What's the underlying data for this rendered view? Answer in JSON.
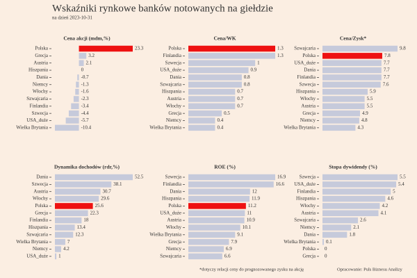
{
  "title": "Wskaźniki rynkowe banków notowanych na giełdzie",
  "subtitle": "na dzień 2023-10-31",
  "note": "*dotyczy relacji ceny do prognozowanego zysku na akcję",
  "source": "Opracowanie: Puls Biznesu Analizy",
  "chart_data": [
    {
      "type": "bar",
      "orientation": "horizontal",
      "title": "Cena akcji (mdm,%)",
      "color": "#c6cadb",
      "highlight": "Polska",
      "highlight_color": "#ee1111",
      "label_color": "#3d8ea0",
      "categories": [
        "Polska",
        "Grecja",
        "Austria",
        "Hiszpania",
        "Dania",
        "Niemcy",
        "Włochy",
        "Szwajcaria",
        "Finlandia",
        "Szwecja",
        "USA_duże",
        "Wielka Brytania"
      ],
      "values": [
        23.3,
        3.2,
        2.1,
        0,
        -0.7,
        -1.3,
        -1.6,
        -2.3,
        -3.4,
        -4.4,
        -5.7,
        -10.4
      ]
    },
    {
      "type": "bar",
      "orientation": "horizontal",
      "title": "Cena/WK",
      "color": "#c6cadb",
      "highlight": "Polska",
      "highlight_color": "#ee1111",
      "label_color": "#3d8ea0",
      "categories": [
        "Polska",
        "Finlandia",
        "Szwecja",
        "USA_duże",
        "Dania",
        "Szwajcaria",
        "Hiszpania",
        "Austria",
        "Włochy",
        "Grecja",
        "Niemcy",
        "Wielka Brytania"
      ],
      "values": [
        1.3,
        1.3,
        1,
        0.9,
        0.8,
        0.8,
        0.7,
        0.7,
        0.7,
        0.5,
        0.4,
        0.4
      ]
    },
    {
      "type": "bar",
      "orientation": "horizontal",
      "title": "Cena/Zysk*",
      "color": "#c6cadb",
      "highlight": "Polska",
      "highlight_color": "#ee1111",
      "label_color": "#3d8ea0",
      "categories": [
        "Szwajcaria",
        "Polska",
        "USA_duże",
        "Dania",
        "Finlandia",
        "Szwecja",
        "Hiszpania",
        "Włochy",
        "Austria",
        "Grecja",
        "Niemcy",
        "Wielka Brytania"
      ],
      "values": [
        9.8,
        7.8,
        7.7,
        7.7,
        7.7,
        7.6,
        5.9,
        5.5,
        5.5,
        4.9,
        4.8,
        4.3
      ]
    },
    {
      "type": "bar",
      "orientation": "horizontal",
      "title": "Dynamika dochodów (rdr,%)",
      "color": "#c6cadb",
      "highlight": "Polska",
      "highlight_color": "#ee1111",
      "label_color": "#3d8ea0",
      "categories": [
        "Dania",
        "Szwecja",
        "Austria",
        "Włochy",
        "Polska",
        "Grecja",
        "Finlandia",
        "Hiszpania",
        "Szwajcaria",
        "Wielka Brytania",
        "Niemcy",
        "USA_duże"
      ],
      "values": [
        52.5,
        38.1,
        30.7,
        29.6,
        25.6,
        22.3,
        18,
        13.4,
        12.3,
        7,
        4.2,
        1
      ]
    },
    {
      "type": "bar",
      "orientation": "horizontal",
      "title": "ROE (%)",
      "color": "#c6cadb",
      "highlight": "Polska",
      "highlight_color": "#ee1111",
      "label_color": "#3d8ea0",
      "categories": [
        "Szwecja",
        "Finlandia",
        "Dania",
        "Hiszpania",
        "Polska",
        "USA_duże",
        "Austria",
        "Włochy",
        "Wielka Brytania",
        "Grecja",
        "Niemcy",
        "Szwajcaria"
      ],
      "values": [
        16.9,
        16.6,
        12,
        11.9,
        11.2,
        11,
        10.9,
        10.1,
        9.1,
        7.9,
        6.9,
        6.6
      ]
    },
    {
      "type": "bar",
      "orientation": "horizontal",
      "title": "Stopa dywidendy (%)",
      "color": "#c6cadb",
      "highlight": "Polska",
      "highlight_color": "#ee1111",
      "label_color": "#3d8ea0",
      "categories": [
        "Szwecja",
        "USA_duże",
        "Finlandia",
        "Hiszpania",
        "Włochy",
        "Austria",
        "Szwajcaria",
        "Niemcy",
        "Dania",
        "Wielka Brytania",
        "Polska",
        "Grecja"
      ],
      "values": [
        5.5,
        5.4,
        5,
        4.6,
        4.2,
        4.1,
        2.6,
        2.1,
        1.8,
        0.1,
        0,
        0
      ]
    }
  ]
}
